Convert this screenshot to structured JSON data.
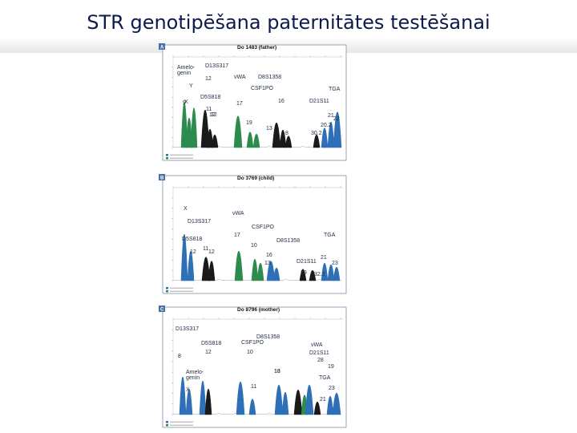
{
  "slide": {
    "title": "STR genotipēšana paternitātes testēšanai"
  },
  "colors": {
    "green": "#2e8b4e",
    "black": "#1a1a1a",
    "blue": "#2f6fb8",
    "frame": "#7f8fa8",
    "title": "#0d1a4a"
  },
  "panels": [
    {
      "badge": "A",
      "heading": "Do 1483 (father)",
      "labels": [
        "Amelo-\ngenin",
        "D13S317",
        "12",
        "X",
        "Y",
        "vWA",
        "D8S1358",
        "CSF1PO",
        "TGA",
        "D5S818",
        "17",
        "16",
        "D21S11",
        "9",
        "11",
        "12",
        "19",
        "13",
        "8",
        "21",
        "22",
        "20.2",
        "30.2",
        "12"
      ]
    },
    {
      "badge": "B",
      "heading": "Do 3769 (child)",
      "labels": [
        "X",
        "D13S317",
        "vWA",
        "CSF1PO",
        "D5S818",
        "17",
        "D8S1358",
        "TGA",
        "12",
        "11",
        "12",
        "10",
        "16",
        "D21S11",
        "21",
        "13",
        "23",
        "29",
        "32.2"
      ]
    },
    {
      "badge": "C",
      "heading": "Do 8796 (mother)",
      "labels": [
        "D13S317",
        "D8S1358",
        "D5S818",
        "CSF1PO",
        "vWA",
        "8",
        "12",
        "10",
        "D21S11",
        "28",
        "19",
        "Amelo-\ngenin",
        "13",
        "18",
        "TGA",
        "X",
        "11",
        "21",
        "23"
      ]
    }
  ]
}
